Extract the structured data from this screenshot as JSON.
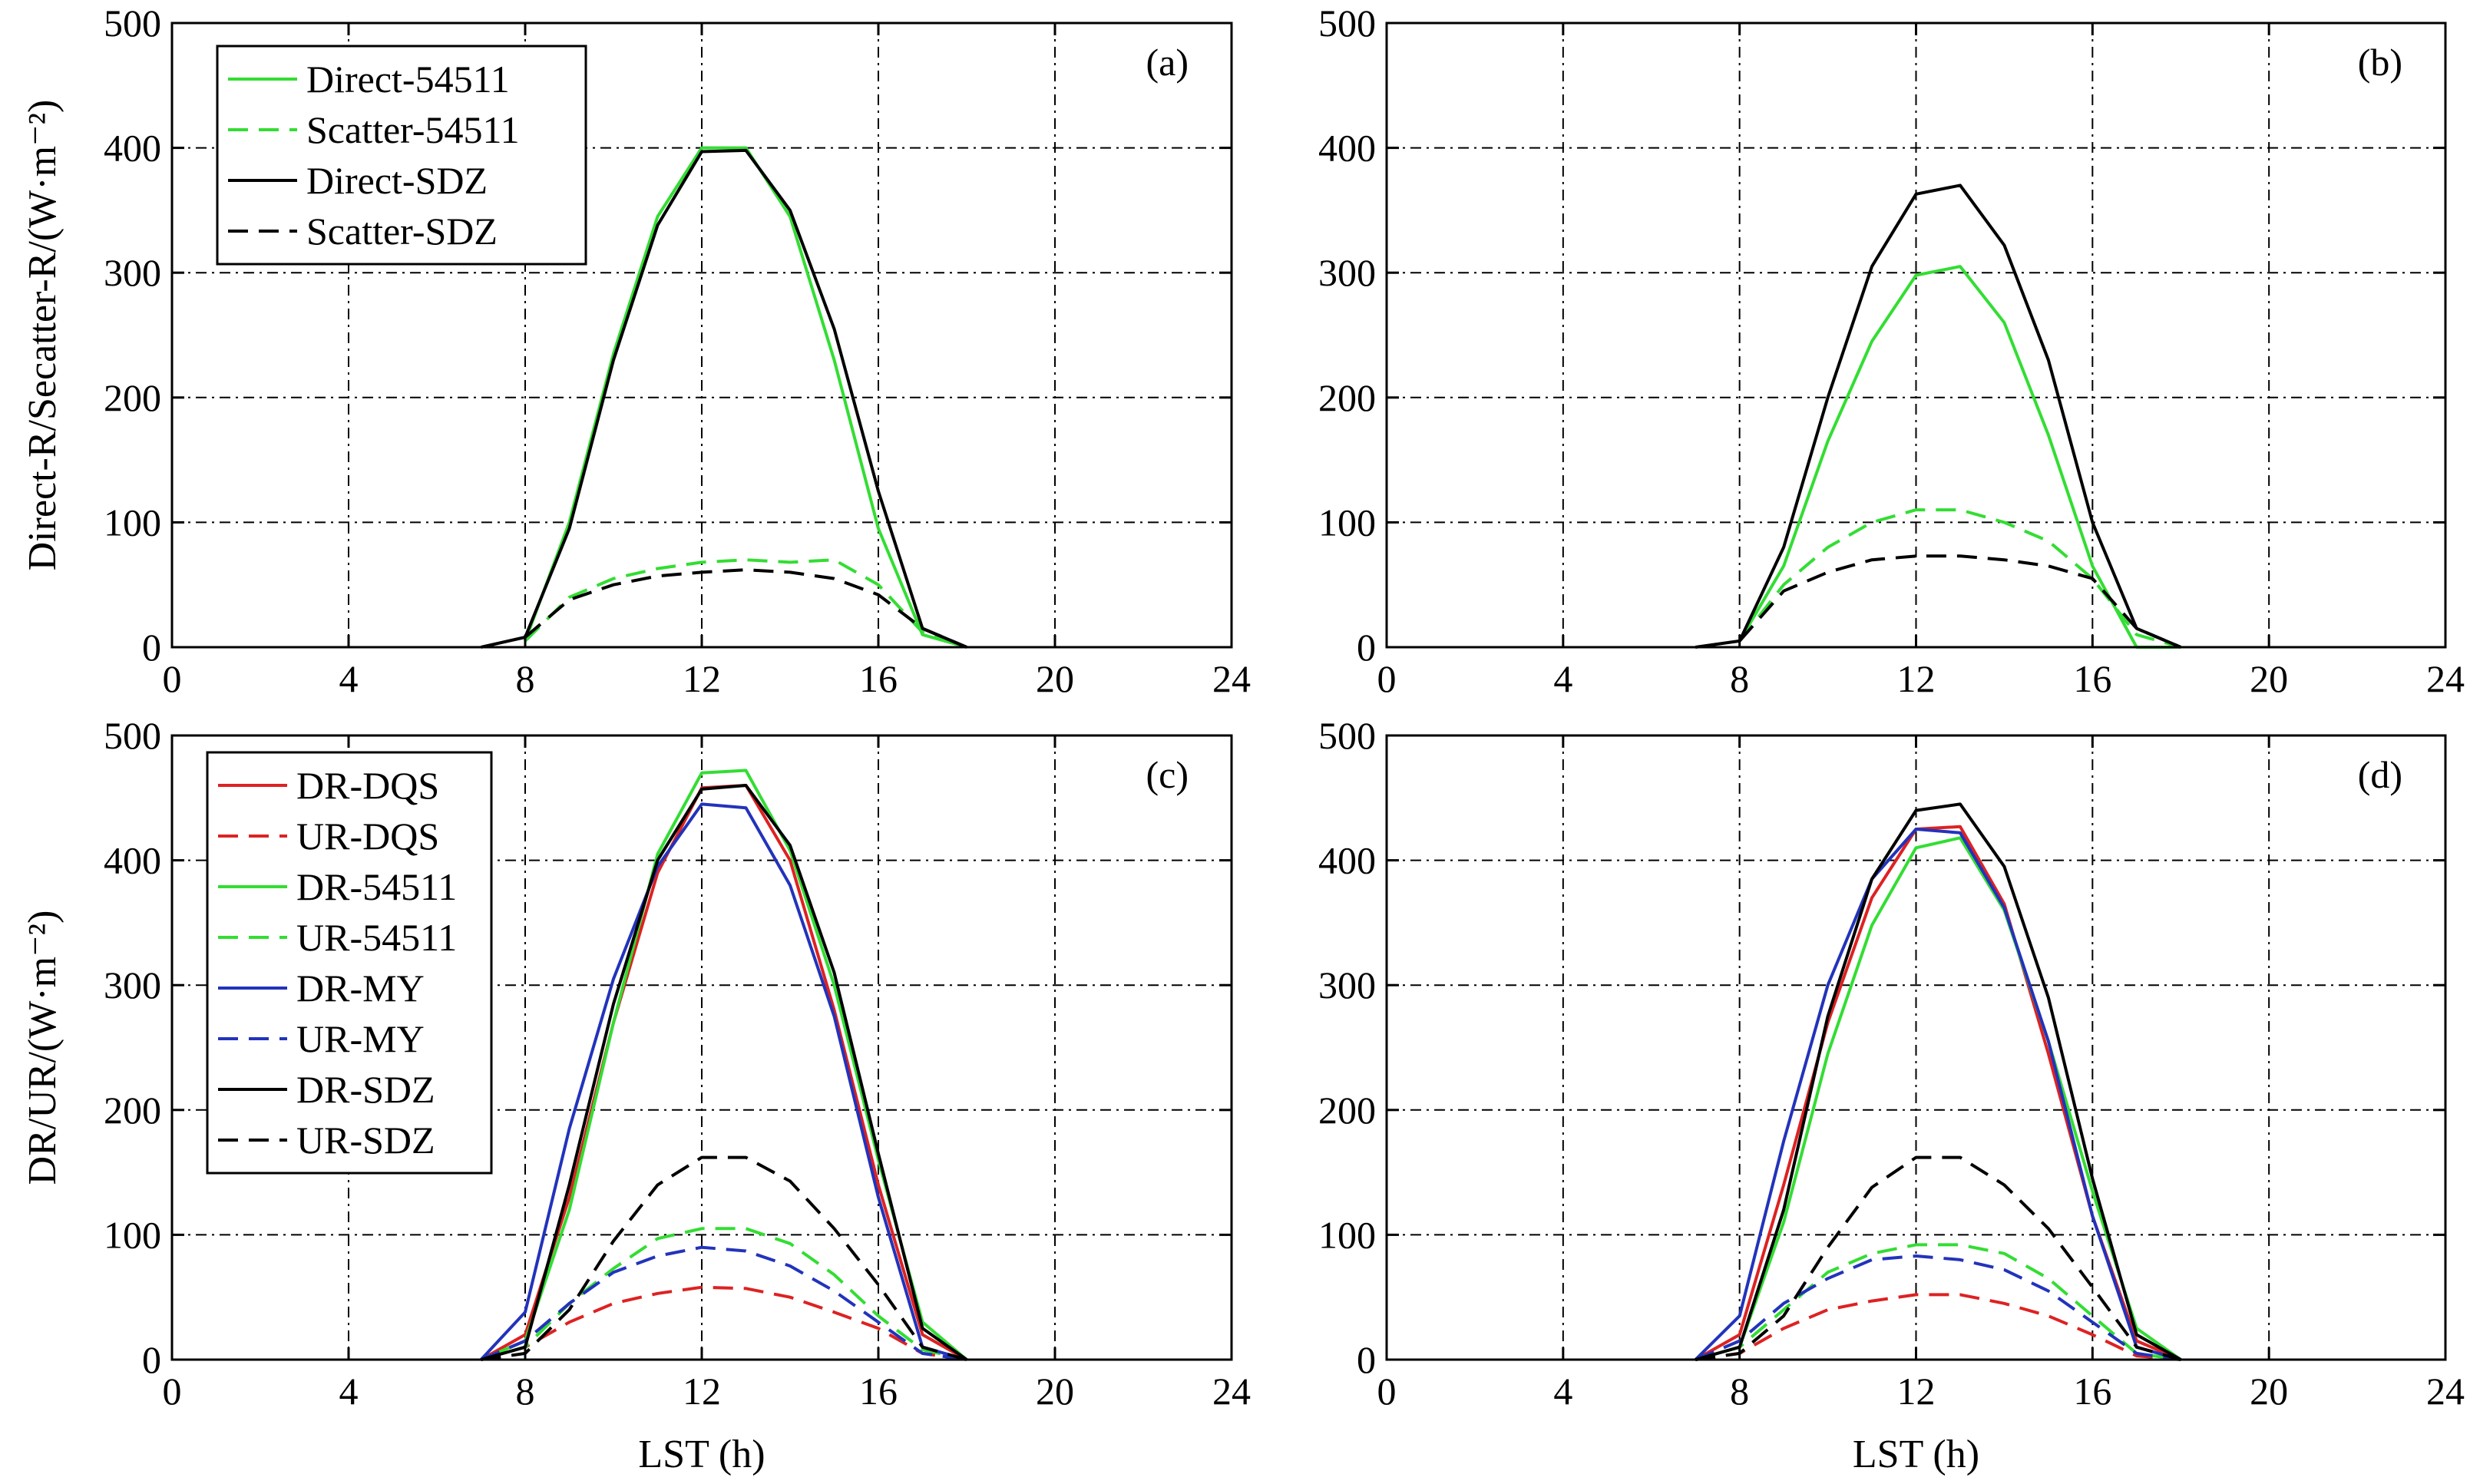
{
  "chart_data": [
    {
      "type": "line",
      "panel_label": "(a)",
      "xlabel": "",
      "ylabel": "Direct-R/Secatter-R/(W·m⁻²)",
      "xlim": [
        0,
        24
      ],
      "ylim": [
        0,
        500
      ],
      "xticks": [
        0,
        4,
        8,
        12,
        16,
        20,
        24
      ],
      "yticks": [
        0,
        100,
        200,
        300,
        400,
        500
      ],
      "grid": true,
      "legend_position": "top-left",
      "series": [
        {
          "name": "Direct-54511",
          "color": "#33dd33",
          "dash": "solid",
          "x": [
            8,
            9,
            10,
            11,
            12,
            13,
            14,
            15,
            16,
            17,
            18
          ],
          "y": [
            5,
            100,
            235,
            345,
            400,
            400,
            345,
            230,
            95,
            10,
            0
          ]
        },
        {
          "name": "Scatter-54511",
          "color": "#33dd33",
          "dash": "dashed",
          "x": [
            8,
            9,
            10,
            11,
            12,
            13,
            14,
            15,
            16,
            17,
            18
          ],
          "y": [
            5,
            40,
            55,
            63,
            68,
            70,
            68,
            70,
            50,
            12,
            0
          ]
        },
        {
          "name": "Direct-SDZ",
          "color": "#000000",
          "dash": "solid",
          "x": [
            7,
            8,
            9,
            10,
            11,
            12,
            13,
            14,
            15,
            16,
            17,
            18
          ],
          "y": [
            0,
            8,
            95,
            230,
            338,
            397,
            398,
            350,
            255,
            125,
            15,
            0
          ]
        },
        {
          "name": "Scatter-SDZ",
          "color": "#000000",
          "dash": "dashed",
          "x": [
            8,
            9,
            10,
            11,
            12,
            13,
            14,
            15,
            16,
            17,
            18
          ],
          "y": [
            8,
            38,
            50,
            57,
            60,
            62,
            60,
            55,
            42,
            15,
            0
          ]
        }
      ]
    },
    {
      "type": "line",
      "panel_label": "(b)",
      "xlabel": "",
      "ylabel": "",
      "xlim": [
        0,
        24
      ],
      "ylim": [
        0,
        500
      ],
      "xticks": [
        0,
        4,
        8,
        12,
        16,
        20,
        24
      ],
      "yticks": [
        0,
        100,
        200,
        300,
        400,
        500
      ],
      "grid": true,
      "series": [
        {
          "color": "#33dd33",
          "dash": "solid",
          "x": [
            8,
            9,
            10,
            11,
            12,
            13,
            14,
            15,
            16,
            17,
            18
          ],
          "y": [
            5,
            65,
            165,
            245,
            298,
            305,
            260,
            170,
            65,
            0,
            0
          ]
        },
        {
          "color": "#33dd33",
          "dash": "dashed",
          "x": [
            8,
            9,
            10,
            11,
            12,
            13,
            14,
            15,
            16,
            17,
            18
          ],
          "y": [
            5,
            50,
            80,
            100,
            110,
            110,
            100,
            85,
            55,
            10,
            0
          ]
        },
        {
          "color": "#000000",
          "dash": "solid",
          "x": [
            7,
            8,
            9,
            10,
            11,
            12,
            13,
            14,
            15,
            16,
            17,
            18
          ],
          "y": [
            0,
            5,
            80,
            200,
            305,
            363,
            370,
            322,
            230,
            100,
            15,
            0
          ]
        },
        {
          "color": "#000000",
          "dash": "dashed",
          "x": [
            8,
            9,
            10,
            11,
            12,
            13,
            14,
            15,
            16,
            17,
            18
          ],
          "y": [
            5,
            45,
            60,
            70,
            73,
            73,
            70,
            65,
            55,
            15,
            0
          ]
        }
      ]
    },
    {
      "type": "line",
      "panel_label": "(c)",
      "xlabel": "LST (h)",
      "ylabel": "DR/UR/(W·m⁻²)",
      "xlim": [
        0,
        24
      ],
      "ylim": [
        0,
        500
      ],
      "xticks": [
        0,
        4,
        8,
        12,
        16,
        20,
        24
      ],
      "yticks": [
        0,
        100,
        200,
        300,
        400,
        500
      ],
      "grid": true,
      "legend_position": "top-left",
      "series": [
        {
          "name": "DR-DQS",
          "color": "#dd2222",
          "dash": "solid",
          "x": [
            7,
            8,
            9,
            10,
            11,
            12,
            13,
            14,
            15,
            16,
            17,
            18
          ],
          "y": [
            0,
            20,
            130,
            270,
            390,
            458,
            460,
            400,
            280,
            140,
            20,
            0
          ]
        },
        {
          "name": "UR-DQS",
          "color": "#dd2222",
          "dash": "dashed",
          "x": [
            7,
            8,
            9,
            10,
            11,
            12,
            13,
            14,
            15,
            16,
            17,
            18
          ],
          "y": [
            0,
            10,
            30,
            45,
            53,
            58,
            57,
            50,
            38,
            25,
            5,
            0
          ]
        },
        {
          "name": "DR-54511",
          "color": "#33dd33",
          "dash": "solid",
          "x": [
            7,
            8,
            9,
            10,
            11,
            12,
            13,
            14,
            15,
            16,
            17,
            18
          ],
          "y": [
            0,
            15,
            120,
            270,
            405,
            470,
            472,
            408,
            300,
            160,
            30,
            0
          ]
        },
        {
          "name": "UR-54511",
          "color": "#33dd33",
          "dash": "dashed",
          "x": [
            7,
            8,
            9,
            10,
            11,
            12,
            13,
            14,
            15,
            16,
            17,
            18
          ],
          "y": [
            0,
            10,
            45,
            73,
            97,
            105,
            105,
            93,
            68,
            35,
            8,
            0
          ]
        },
        {
          "name": "DR-MY",
          "color": "#2233bb",
          "dash": "solid",
          "x": [
            7,
            8,
            9,
            10,
            11,
            12,
            13,
            14,
            15,
            16,
            17,
            18
          ],
          "y": [
            0,
            38,
            185,
            305,
            395,
            445,
            442,
            380,
            275,
            130,
            10,
            0
          ]
        },
        {
          "name": "UR-MY",
          "color": "#2233bb",
          "dash": "dashed",
          "x": [
            7,
            8,
            9,
            10,
            11,
            12,
            13,
            14,
            15,
            16,
            17,
            18
          ],
          "y": [
            0,
            15,
            45,
            70,
            83,
            90,
            87,
            75,
            55,
            30,
            5,
            0
          ]
        },
        {
          "name": "DR-SDZ",
          "color": "#000000",
          "dash": "solid",
          "x": [
            7,
            8,
            9,
            10,
            11,
            12,
            13,
            14,
            15,
            16,
            17,
            18
          ],
          "y": [
            0,
            10,
            140,
            285,
            400,
            457,
            460,
            412,
            310,
            165,
            25,
            0
          ]
        },
        {
          "name": "UR-SDZ",
          "color": "#000000",
          "dash": "dashed",
          "x": [
            7,
            8,
            9,
            10,
            11,
            12,
            13,
            14,
            15,
            16,
            17,
            18
          ],
          "y": [
            0,
            5,
            40,
            95,
            140,
            162,
            162,
            143,
            105,
            60,
            10,
            0
          ]
        }
      ]
    },
    {
      "type": "line",
      "panel_label": "(d)",
      "xlabel": "LST (h)",
      "ylabel": "",
      "xlim": [
        0,
        24
      ],
      "ylim": [
        0,
        500
      ],
      "xticks": [
        0,
        4,
        8,
        12,
        16,
        20,
        24
      ],
      "yticks": [
        0,
        100,
        200,
        300,
        400,
        500
      ],
      "grid": true,
      "series": [
        {
          "color": "#dd2222",
          "dash": "solid",
          "x": [
            7,
            8,
            9,
            10,
            11,
            12,
            13,
            14,
            15,
            16,
            17,
            18
          ],
          "y": [
            0,
            20,
            140,
            270,
            370,
            425,
            427,
            365,
            245,
            115,
            15,
            0
          ]
        },
        {
          "color": "#dd2222",
          "dash": "dashed",
          "x": [
            7,
            8,
            9,
            10,
            11,
            12,
            13,
            14,
            15,
            16,
            17,
            18
          ],
          "y": [
            0,
            5,
            25,
            40,
            47,
            52,
            52,
            45,
            35,
            20,
            3,
            0
          ]
        },
        {
          "color": "#33dd33",
          "dash": "solid",
          "x": [
            7,
            8,
            9,
            10,
            11,
            12,
            13,
            14,
            15,
            16,
            17,
            18
          ],
          "y": [
            0,
            10,
            110,
            245,
            348,
            410,
            418,
            360,
            255,
            135,
            25,
            0
          ]
        },
        {
          "color": "#33dd33",
          "dash": "dashed",
          "x": [
            7,
            8,
            9,
            10,
            11,
            12,
            13,
            14,
            15,
            16,
            17,
            18
          ],
          "y": [
            0,
            10,
            40,
            70,
            85,
            92,
            92,
            85,
            65,
            35,
            5,
            0
          ]
        },
        {
          "color": "#2233bb",
          "dash": "solid",
          "x": [
            7,
            8,
            9,
            10,
            11,
            12,
            13,
            14,
            15,
            16,
            17,
            18
          ],
          "y": [
            0,
            35,
            175,
            300,
            385,
            425,
            422,
            362,
            255,
            115,
            10,
            0
          ]
        },
        {
          "color": "#2233bb",
          "dash": "dashed",
          "x": [
            7,
            8,
            9,
            10,
            11,
            12,
            13,
            14,
            15,
            16,
            17,
            18
          ],
          "y": [
            0,
            15,
            45,
            65,
            80,
            83,
            80,
            72,
            55,
            30,
            5,
            0
          ]
        },
        {
          "color": "#000000",
          "dash": "solid",
          "x": [
            7,
            8,
            9,
            10,
            11,
            12,
            13,
            14,
            15,
            16,
            17,
            18
          ],
          "y": [
            0,
            10,
            120,
            275,
            385,
            440,
            445,
            395,
            290,
            145,
            20,
            0
          ]
        },
        {
          "color": "#000000",
          "dash": "dashed",
          "x": [
            7,
            8,
            9,
            10,
            11,
            12,
            13,
            14,
            15,
            16,
            17,
            18
          ],
          "y": [
            0,
            5,
            35,
            90,
            138,
            162,
            162,
            140,
            105,
            58,
            10,
            0
          ]
        }
      ]
    }
  ]
}
